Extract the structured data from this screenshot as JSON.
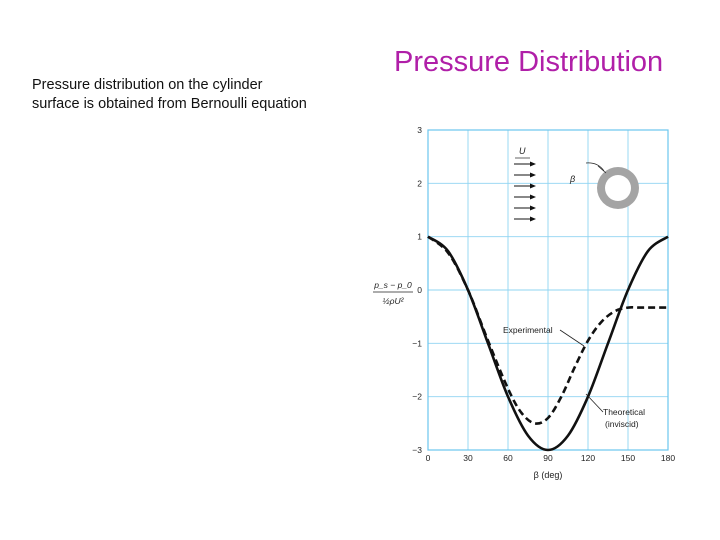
{
  "slide": {
    "title": "Pressure Distribution",
    "body_line1": "Pressure distribution on the cylinder",
    "body_line2": "surface is obtained from Bernoulli equation"
  },
  "chart_data": {
    "type": "line",
    "xlabel": "β (deg)",
    "ylabel_num": "p_s − p_0",
    "ylabel_den": "½ρU²",
    "xlim": [
      0,
      180
    ],
    "ylim": [
      -3,
      3
    ],
    "x_ticks": [
      0,
      30,
      60,
      90,
      120,
      150,
      180
    ],
    "y_ticks": [
      3,
      2,
      1,
      0,
      -1,
      -2,
      -3
    ],
    "y_tick_labels": [
      "3",
      "2",
      "1",
      "0",
      "−1",
      "−2",
      "−3"
    ],
    "grid": true,
    "series": [
      {
        "name": "Theoretical (inviscid)",
        "label_line1": "Theoretical",
        "label_line2": "(inviscid)",
        "style": "solid",
        "formula": "1 - 4 sin^2(beta)",
        "x": [
          0,
          15,
          30,
          45,
          60,
          75,
          90,
          105,
          120,
          135,
          150,
          165,
          180
        ],
        "y": [
          1,
          0.73,
          0,
          -1,
          -2,
          -2.73,
          -3,
          -2.73,
          -2,
          -1,
          0,
          0.73,
          1
        ]
      },
      {
        "name": "Experimental",
        "label_line1": "Experimental",
        "style": "dashed",
        "x": [
          0,
          15,
          30,
          45,
          60,
          70,
          80,
          90,
          100,
          110,
          120,
          130,
          140,
          150,
          160,
          180
        ],
        "y": [
          1,
          0.7,
          0,
          -0.95,
          -1.85,
          -2.3,
          -2.5,
          -2.4,
          -2.0,
          -1.45,
          -0.95,
          -0.6,
          -0.4,
          -0.33,
          -0.33,
          -0.33
        ]
      }
    ],
    "inset": {
      "flow_label": "U",
      "angle_label": "β"
    }
  }
}
